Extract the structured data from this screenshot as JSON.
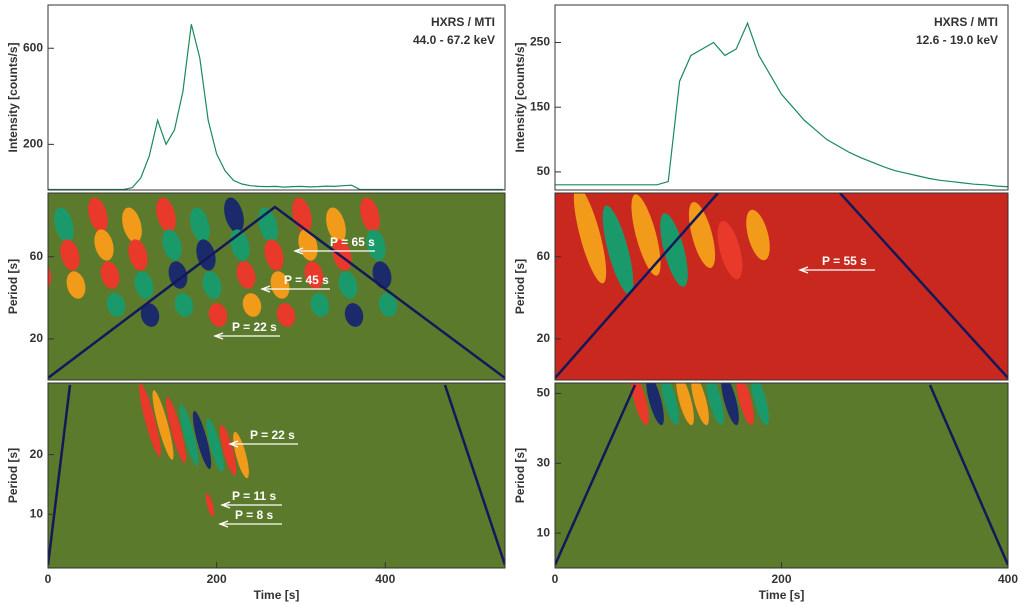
{
  "chart_data": [
    {
      "type": "line",
      "ylabel": "Intensity [counts/s]",
      "instrument": "HXRS / MTI",
      "band": "44.0 - 67.2 keV",
      "xlim": [
        0,
        542
      ],
      "ylim": [
        10,
        780
      ],
      "yticks": [
        200,
        600
      ],
      "color": "#1a8a5a",
      "x": [
        0,
        10,
        20,
        30,
        40,
        50,
        60,
        70,
        80,
        90,
        100,
        110,
        120,
        130,
        140,
        150,
        160,
        170,
        180,
        190,
        200,
        210,
        220,
        230,
        240,
        250,
        260,
        270,
        280,
        290,
        300,
        310,
        320,
        330,
        340,
        350,
        360,
        370,
        380,
        390,
        400,
        410,
        420,
        430,
        440,
        450,
        460,
        470,
        480,
        490,
        500,
        510,
        520,
        530,
        540
      ],
      "values": [
        12,
        12,
        12,
        12,
        12,
        12,
        12,
        12,
        12,
        12,
        20,
        60,
        150,
        300,
        200,
        260,
        420,
        700,
        560,
        300,
        160,
        90,
        50,
        35,
        28,
        25,
        24,
        25,
        22,
        24,
        25,
        23,
        24,
        26,
        25,
        28,
        30,
        12,
        12,
        12,
        12,
        12,
        12,
        12,
        12,
        12,
        12,
        12,
        12,
        12,
        12,
        12,
        12,
        12,
        12
      ]
    },
    {
      "type": "line",
      "ylabel": "Intensity [counts/s]",
      "instrument": "HXRS / MTI",
      "band": "12.6 - 19.0 keV",
      "xlim": [
        0,
        400
      ],
      "ylim": [
        22,
        308
      ],
      "yticks": [
        50,
        150,
        250
      ],
      "color": "#1a8a5a",
      "x": [
        0,
        10,
        20,
        30,
        40,
        50,
        60,
        70,
        80,
        90,
        100,
        110,
        120,
        130,
        140,
        150,
        160,
        170,
        180,
        190,
        200,
        210,
        220,
        230,
        240,
        250,
        260,
        270,
        280,
        290,
        300,
        310,
        320,
        330,
        340,
        350,
        360,
        370,
        380,
        390,
        400
      ],
      "values": [
        30,
        30,
        30,
        30,
        30,
        30,
        30,
        30,
        30,
        30,
        35,
        190,
        230,
        240,
        250,
        230,
        240,
        280,
        230,
        200,
        170,
        150,
        130,
        115,
        100,
        90,
        80,
        72,
        65,
        58,
        52,
        48,
        44,
        40,
        37,
        35,
        33,
        31,
        30,
        28,
        27
      ]
    },
    {
      "type": "wavelet",
      "ylabel": "Period [s]",
      "xlim": [
        0,
        542
      ],
      "ylim": [
        0,
        91
      ],
      "yticks": [
        20,
        60
      ],
      "background": "#5b7a2b",
      "annotations": [
        "P = 65 s",
        "P = 45 s",
        "P = 22 s"
      ]
    },
    {
      "type": "wavelet",
      "ylabel": "Period [s]",
      "xlim": [
        0,
        400
      ],
      "ylim": [
        0,
        91
      ],
      "yticks": [
        20,
        60
      ],
      "background": "#c9281f",
      "annotations": [
        "P = 55 s"
      ]
    },
    {
      "type": "wavelet",
      "ylabel": "Period [s]",
      "xlabel": "Time [s]",
      "xlim": [
        0,
        542
      ],
      "ylim": [
        1,
        32
      ],
      "yticks": [
        10,
        20
      ],
      "xticks": [
        0,
        200,
        400
      ],
      "background": "#5b7a2b",
      "annotations": [
        "P = 22 s",
        "P = 11 s",
        "P = 8 s"
      ]
    },
    {
      "type": "wavelet",
      "ylabel": "Period [s]",
      "xlabel": "Time [s]",
      "xlim": [
        0,
        400
      ],
      "ylim": [
        0,
        53
      ],
      "yticks": [
        10,
        30,
        50
      ],
      "xticks": [
        0,
        200,
        400
      ],
      "background": "#5b7a2b",
      "annotations": []
    }
  ]
}
